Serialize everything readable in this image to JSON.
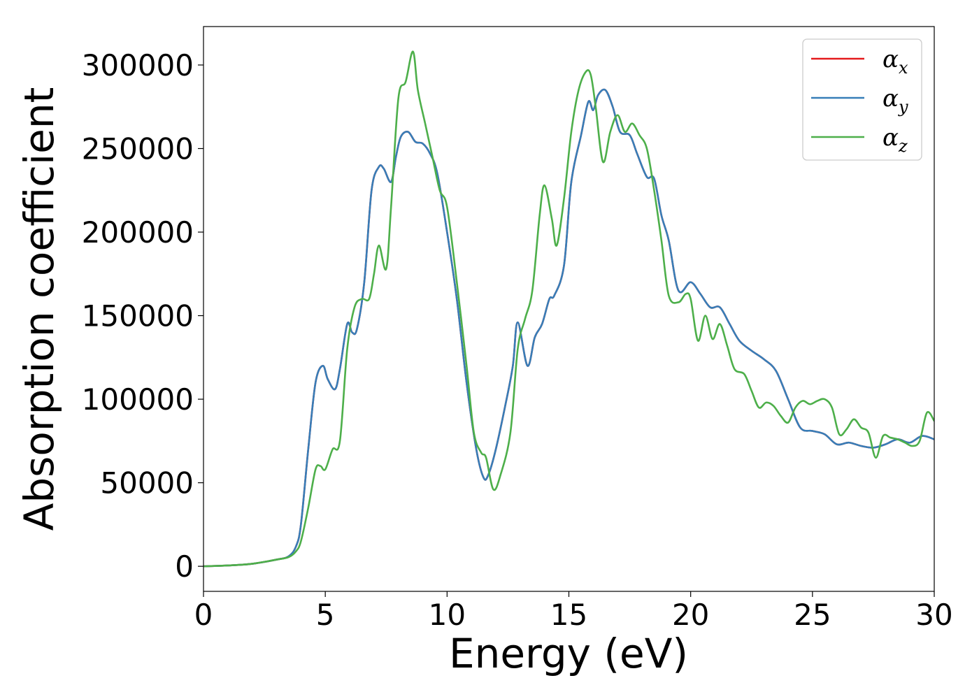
{
  "chart_data": {
    "type": "line",
    "title": "",
    "xlabel": "Energy (eV)",
    "ylabel": "Absorption coefficient",
    "xlim": [
      0,
      30
    ],
    "ylim": [
      -15000,
      323000
    ],
    "xticks": [
      0,
      5,
      10,
      15,
      20,
      25,
      30
    ],
    "xtick_labels": [
      "0",
      "5",
      "10",
      "15",
      "20",
      "25",
      "30"
    ],
    "yticks": [
      0,
      50000,
      100000,
      150000,
      200000,
      250000,
      300000
    ],
    "ytick_labels": [
      "0",
      "50000",
      "100000",
      "150000",
      "200000",
      "250000",
      "300000"
    ],
    "grid": false,
    "legend_position": "top-right",
    "series": [
      {
        "name": "αx",
        "legend_base": "α",
        "legend_sub": "x",
        "color": "#e41a1c",
        "x": [
          0,
          1,
          2,
          3,
          3.5,
          3.8,
          4,
          4.3,
          4.6,
          4.9,
          5.1,
          5.4,
          5.6,
          5.9,
          6.1,
          6.3,
          6.6,
          6.9,
          7.2,
          7.4,
          7.7,
          7.9,
          8.1,
          8.4,
          8.7,
          9.0,
          9.3,
          9.6,
          10.0,
          10.4,
          10.8,
          11.2,
          11.5,
          11.7,
          12.0,
          12.4,
          12.7,
          12.9,
          13.3,
          13.6,
          13.9,
          14.2,
          14.4,
          14.8,
          15.1,
          15.5,
          15.8,
          16.0,
          16.2,
          16.5,
          16.8,
          17.1,
          17.5,
          17.8,
          18.2,
          18.5,
          18.8,
          19.1,
          19.5,
          20.0,
          20.4,
          20.8,
          21.2,
          21.6,
          22.0,
          22.5,
          23.0,
          23.5,
          24.0,
          24.5,
          25.0,
          25.5,
          26.0,
          26.5,
          27.0,
          27.5,
          28.0,
          28.5,
          29.0,
          29.5,
          30.0
        ],
        "values": [
          0,
          500,
          1500,
          4000,
          6000,
          12000,
          25000,
          70000,
          110000,
          120000,
          112000,
          106000,
          118000,
          145000,
          140000,
          142000,
          170000,
          225000,
          239000,
          238000,
          230000,
          245000,
          257000,
          260000,
          254000,
          253000,
          247000,
          235000,
          200000,
          160000,
          110000,
          70000,
          53000,
          55000,
          70000,
          97000,
          120000,
          146000,
          120000,
          137000,
          145000,
          160000,
          162000,
          180000,
          230000,
          258000,
          278000,
          273000,
          282000,
          285000,
          275000,
          260000,
          258000,
          247000,
          233000,
          232000,
          210000,
          195000,
          165000,
          170000,
          163000,
          155000,
          155000,
          145000,
          135000,
          129000,
          124000,
          117000,
          100000,
          83000,
          81000,
          79000,
          73000,
          74000,
          72000,
          71000,
          73000,
          76000,
          74000,
          78000,
          76000
        ]
      },
      {
        "name": "αy",
        "legend_base": "α",
        "legend_sub": "y",
        "color": "#377eb8",
        "x": [
          0,
          1,
          2,
          3,
          3.5,
          3.8,
          4,
          4.3,
          4.6,
          4.9,
          5.1,
          5.4,
          5.6,
          5.9,
          6.1,
          6.3,
          6.6,
          6.9,
          7.2,
          7.4,
          7.7,
          7.9,
          8.1,
          8.4,
          8.7,
          9.0,
          9.3,
          9.6,
          10.0,
          10.4,
          10.8,
          11.2,
          11.5,
          11.7,
          12.0,
          12.4,
          12.7,
          12.9,
          13.3,
          13.6,
          13.9,
          14.2,
          14.4,
          14.8,
          15.1,
          15.5,
          15.8,
          16.0,
          16.2,
          16.5,
          16.8,
          17.1,
          17.5,
          17.8,
          18.2,
          18.5,
          18.8,
          19.1,
          19.5,
          20.0,
          20.4,
          20.8,
          21.2,
          21.6,
          22.0,
          22.5,
          23.0,
          23.5,
          24.0,
          24.5,
          25.0,
          25.5,
          26.0,
          26.5,
          27.0,
          27.5,
          28.0,
          28.5,
          29.0,
          29.5,
          30.0
        ],
        "values": [
          0,
          500,
          1500,
          4000,
          6000,
          12000,
          25000,
          70000,
          110000,
          120000,
          112000,
          106000,
          118000,
          145000,
          140000,
          142000,
          170000,
          225000,
          239000,
          238000,
          230000,
          245000,
          257000,
          260000,
          254000,
          253000,
          247000,
          235000,
          200000,
          160000,
          110000,
          70000,
          53000,
          55000,
          70000,
          97000,
          120000,
          146000,
          120000,
          137000,
          145000,
          160000,
          162000,
          180000,
          230000,
          258000,
          278000,
          273000,
          282000,
          285000,
          275000,
          260000,
          258000,
          247000,
          233000,
          232000,
          210000,
          195000,
          165000,
          170000,
          163000,
          155000,
          155000,
          145000,
          135000,
          129000,
          124000,
          117000,
          100000,
          83000,
          81000,
          79000,
          73000,
          74000,
          72000,
          71000,
          73000,
          76000,
          74000,
          78000,
          76000
        ]
      },
      {
        "name": "αz",
        "legend_base": "α",
        "legend_sub": "z",
        "color": "#4daf4a",
        "x": [
          0,
          1,
          2,
          3,
          3.5,
          3.8,
          4,
          4.3,
          4.6,
          4.8,
          5.0,
          5.3,
          5.6,
          5.9,
          6.2,
          6.5,
          6.8,
          7.0,
          7.2,
          7.5,
          7.7,
          8.0,
          8.3,
          8.6,
          8.8,
          9.1,
          9.4,
          9.7,
          10.0,
          10.4,
          10.8,
          11.1,
          11.4,
          11.6,
          11.9,
          12.2,
          12.6,
          12.9,
          13.2,
          13.5,
          13.8,
          14.0,
          14.3,
          14.5,
          14.8,
          15.1,
          15.4,
          15.7,
          15.9,
          16.1,
          16.4,
          16.7,
          17.0,
          17.3,
          17.6,
          17.9,
          18.2,
          18.5,
          18.8,
          19.1,
          19.5,
          19.8,
          20.0,
          20.3,
          20.6,
          20.9,
          21.2,
          21.5,
          21.8,
          22.2,
          22.5,
          22.8,
          23.1,
          23.4,
          23.7,
          24.0,
          24.3,
          24.6,
          24.9,
          25.2,
          25.5,
          25.8,
          26.1,
          26.4,
          26.7,
          27.0,
          27.3,
          27.6,
          27.9,
          28.2,
          28.5,
          28.8,
          29.1,
          29.4,
          29.7,
          30.0
        ],
        "values": [
          0,
          500,
          1500,
          4000,
          5500,
          9000,
          15000,
          35000,
          58000,
          60000,
          58000,
          70000,
          75000,
          130000,
          155000,
          160000,
          160000,
          175000,
          192000,
          178000,
          215000,
          280000,
          290000,
          308000,
          285000,
          265000,
          245000,
          225000,
          215000,
          170000,
          120000,
          80000,
          68000,
          65000,
          46000,
          55000,
          80000,
          130000,
          148000,
          165000,
          210000,
          228000,
          208000,
          192000,
          220000,
          260000,
          285000,
          296000,
          294000,
          275000,
          242000,
          260000,
          270000,
          260000,
          265000,
          258000,
          250000,
          225000,
          195000,
          162000,
          158000,
          163000,
          160000,
          135000,
          150000,
          136000,
          145000,
          132000,
          118000,
          115000,
          105000,
          95000,
          98000,
          96000,
          90000,
          86000,
          95000,
          99000,
          97000,
          99000,
          100000,
          95000,
          79000,
          82000,
          88000,
          83000,
          80000,
          65000,
          78000,
          77000,
          76000,
          74000,
          72000,
          75000,
          92000,
          87000
        ]
      }
    ]
  }
}
